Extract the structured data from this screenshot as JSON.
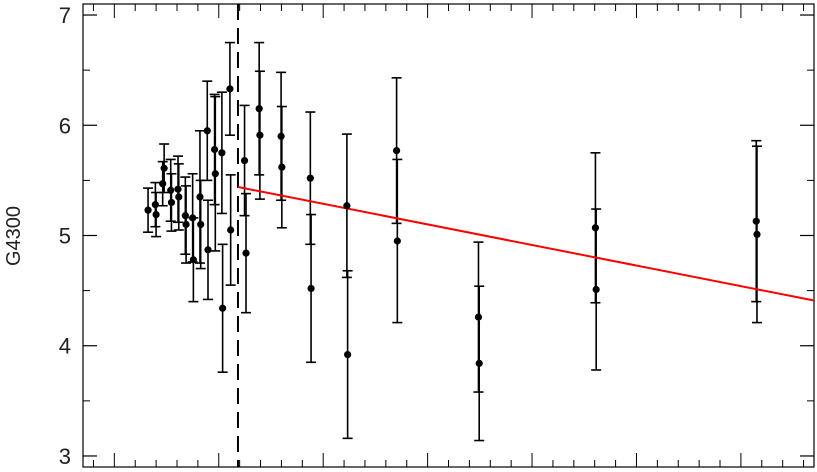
{
  "chart_data": {
    "type": "scatter",
    "title": "",
    "xlabel": "",
    "ylabel": "G4300",
    "ylim": [
      2.9,
      7.1
    ],
    "xlim": [
      0,
      100
    ],
    "y_ticks": [
      3,
      4,
      5,
      6,
      7
    ],
    "y_tick_labels": [
      "3",
      "4",
      "5",
      "6",
      "7"
    ],
    "x_tick_count": 35,
    "x_tick_labels": [],
    "grid": false,
    "legend": "none",
    "colors": {
      "points": "#000000",
      "fit_line": "#ff0000",
      "divider": "#000000"
    },
    "divider_x": 21.2,
    "fit_line": {
      "x": [
        21.2,
        100
      ],
      "y": [
        5.44,
        4.41
      ]
    },
    "points": [
      {
        "x": 8.9,
        "y": 5.23,
        "err": 0.2
      },
      {
        "x": 9.9,
        "y": 5.28,
        "err": 0.2
      },
      {
        "x": 10.0,
        "y": 5.19,
        "err": 0.2
      },
      {
        "x": 10.9,
        "y": 5.47,
        "err": 0.2
      },
      {
        "x": 11.1,
        "y": 5.61,
        "err": 0.22
      },
      {
        "x": 12.0,
        "y": 5.41,
        "err": 0.28
      },
      {
        "x": 12.1,
        "y": 5.3,
        "err": 0.26
      },
      {
        "x": 13.0,
        "y": 5.42,
        "err": 0.3
      },
      {
        "x": 13.1,
        "y": 5.35,
        "err": 0.3
      },
      {
        "x": 14.0,
        "y": 5.18,
        "err": 0.35
      },
      {
        "x": 14.1,
        "y": 5.1,
        "err": 0.35
      },
      {
        "x": 15.0,
        "y": 5.16,
        "err": 0.4
      },
      {
        "x": 15.1,
        "y": 4.78,
        "err": 0.38
      },
      {
        "x": 16.0,
        "y": 5.35,
        "err": 0.6
      },
      {
        "x": 16.1,
        "y": 5.1,
        "err": 0.4
      },
      {
        "x": 17.0,
        "y": 5.95,
        "err": 0.45
      },
      {
        "x": 17.1,
        "y": 4.87,
        "err": 0.45
      },
      {
        "x": 18.0,
        "y": 5.78,
        "err": 0.5
      },
      {
        "x": 18.1,
        "y": 5.56,
        "err": 0.7
      },
      {
        "x": 19.0,
        "y": 5.75,
        "err": 0.55
      },
      {
        "x": 19.1,
        "y": 4.34,
        "err": 0.58
      },
      {
        "x": 20.1,
        "y": 6.33,
        "err": 0.42
      },
      {
        "x": 20.2,
        "y": 5.05,
        "err": 0.5
      },
      {
        "x": 22.1,
        "y": 5.68,
        "err": 0.5
      },
      {
        "x": 22.3,
        "y": 4.84,
        "err": 0.54
      },
      {
        "x": 24.1,
        "y": 6.15,
        "err": 0.6
      },
      {
        "x": 24.2,
        "y": 5.91,
        "err": 0.58
      },
      {
        "x": 27.1,
        "y": 5.9,
        "err": 0.58
      },
      {
        "x": 27.2,
        "y": 5.62,
        "err": 0.55
      },
      {
        "x": 31.1,
        "y": 5.52,
        "err": 0.6
      },
      {
        "x": 31.2,
        "y": 4.52,
        "err": 0.67
      },
      {
        "x": 36.1,
        "y": 5.27,
        "err": 0.65
      },
      {
        "x": 36.2,
        "y": 3.92,
        "err": 0.76
      },
      {
        "x": 42.9,
        "y": 5.77,
        "err": 0.66
      },
      {
        "x": 43.0,
        "y": 4.95,
        "err": 0.74
      },
      {
        "x": 54.1,
        "y": 4.26,
        "err": 0.68
      },
      {
        "x": 54.2,
        "y": 3.84,
        "err": 0.7
      },
      {
        "x": 70.1,
        "y": 5.07,
        "err": 0.68
      },
      {
        "x": 70.2,
        "y": 4.51,
        "err": 0.73
      },
      {
        "x": 92.1,
        "y": 5.13,
        "err": 0.73
      },
      {
        "x": 92.2,
        "y": 5.01,
        "err": 0.8
      }
    ]
  }
}
